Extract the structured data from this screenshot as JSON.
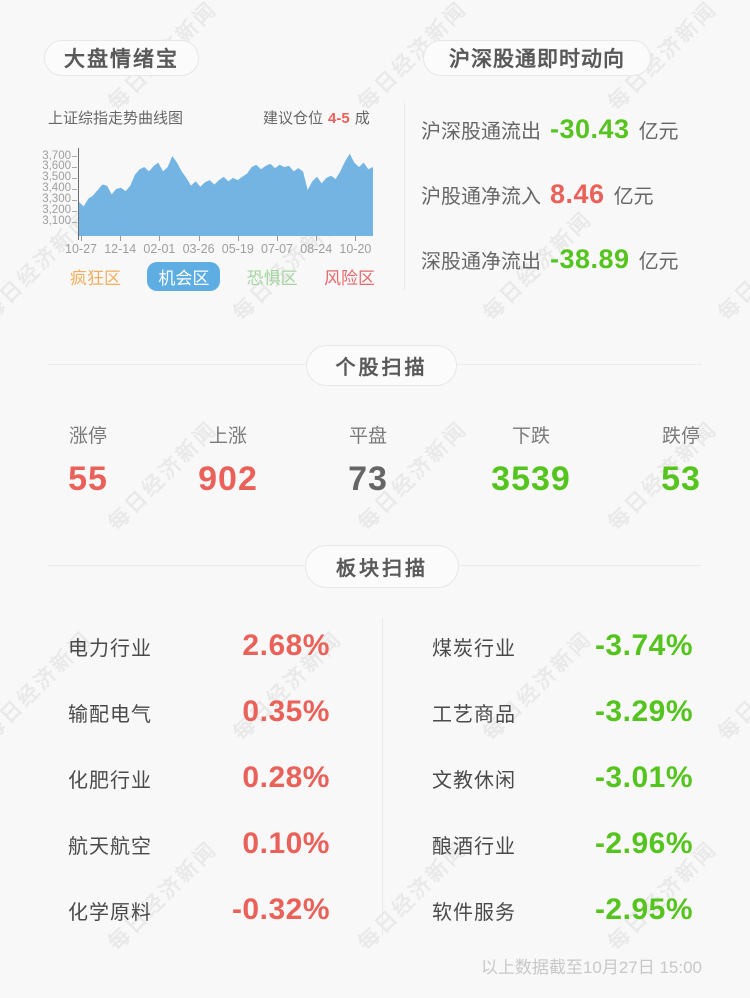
{
  "page": {
    "watermark_text": "每日经济新闻",
    "footer_note": "以上数据截至10月27日 15:00"
  },
  "sentiment": {
    "title": "大盘情绪宝",
    "chart_caption": "上证综指走势曲线图",
    "advice_prefix": "建议仓位",
    "advice_value": "4-5",
    "advice_suffix": "成",
    "legend": [
      {
        "label": "疯狂区",
        "color": "orange",
        "active": false
      },
      {
        "label": "机会区",
        "color": "blue",
        "active": true
      },
      {
        "label": "恐惧区",
        "color": "green",
        "active": false
      },
      {
        "label": "风险区",
        "color": "red",
        "active": false
      }
    ]
  },
  "chart_data": {
    "type": "area",
    "title": "上证综指走势曲线图",
    "x_ticks": [
      "10-27",
      "12-14",
      "02-01",
      "03-26",
      "05-19",
      "07-07",
      "08-24",
      "10-20"
    ],
    "y_ticks": [
      {
        "label": "3,700",
        "value": 3700
      },
      {
        "label": "3,600",
        "value": 3600
      },
      {
        "label": "3,500",
        "value": 3500
      },
      {
        "label": "3,400",
        "value": 3400
      },
      {
        "label": "3,300",
        "value": 3300
      },
      {
        "label": "3,200",
        "value": 3200
      },
      {
        "label": "3,100",
        "value": 3100
      }
    ],
    "ylim": [
      2970,
      3755
    ],
    "grid": false,
    "legend_position": "bottom",
    "fill_color": "#74B4E2",
    "series": [
      {
        "name": "上证综指",
        "values": [
          3280,
          3240,
          3310,
          3340,
          3390,
          3440,
          3430,
          3350,
          3400,
          3410,
          3380,
          3430,
          3530,
          3580,
          3600,
          3560,
          3610,
          3640,
          3560,
          3600,
          3700,
          3640,
          3560,
          3500,
          3430,
          3470,
          3420,
          3460,
          3480,
          3440,
          3480,
          3510,
          3470,
          3500,
          3480,
          3510,
          3540,
          3600,
          3620,
          3580,
          3610,
          3630,
          3590,
          3620,
          3600,
          3610,
          3560,
          3590,
          3560,
          3390,
          3470,
          3510,
          3450,
          3500,
          3520,
          3490,
          3560,
          3650,
          3720,
          3640,
          3600,
          3640,
          3580,
          3600
        ]
      }
    ]
  },
  "flows": {
    "title": "沪深股通即时动向",
    "items": [
      {
        "label": "沪深股通流出",
        "value": "-30.43",
        "unit": "亿元",
        "color": "green"
      },
      {
        "label": "沪股通净流入",
        "value": "8.46",
        "unit": "亿元",
        "color": "red"
      },
      {
        "label": "深股通净流出",
        "value": "-38.89",
        "unit": "亿元",
        "color": "green"
      }
    ]
  },
  "stocks_scan": {
    "title": "个股扫描",
    "items": [
      {
        "label": "涨停",
        "value": "55",
        "color": "red"
      },
      {
        "label": "上涨",
        "value": "902",
        "color": "red"
      },
      {
        "label": "平盘",
        "value": "73",
        "color": "gray"
      },
      {
        "label": "下跌",
        "value": "3539",
        "color": "green"
      },
      {
        "label": "跌停",
        "value": "53",
        "color": "green"
      }
    ]
  },
  "sector_scan": {
    "title": "板块扫描",
    "left": [
      {
        "label": "电力行业",
        "value": "2.68%",
        "color": "red"
      },
      {
        "label": "输配电气",
        "value": "0.35%",
        "color": "red"
      },
      {
        "label": "化肥行业",
        "value": "0.28%",
        "color": "red"
      },
      {
        "label": "航天航空",
        "value": "0.10%",
        "color": "red"
      },
      {
        "label": "化学原料",
        "value": "-0.32%",
        "color": "red"
      }
    ],
    "right": [
      {
        "label": "煤炭行业",
        "value": "-3.74%",
        "color": "green"
      },
      {
        "label": "工艺商品",
        "value": "-3.29%",
        "color": "green"
      },
      {
        "label": "文教休闲",
        "value": "-3.01%",
        "color": "green"
      },
      {
        "label": "酿酒行业",
        "value": "-2.96%",
        "color": "green"
      },
      {
        "label": "软件服务",
        "value": "-2.95%",
        "color": "green"
      }
    ]
  }
}
